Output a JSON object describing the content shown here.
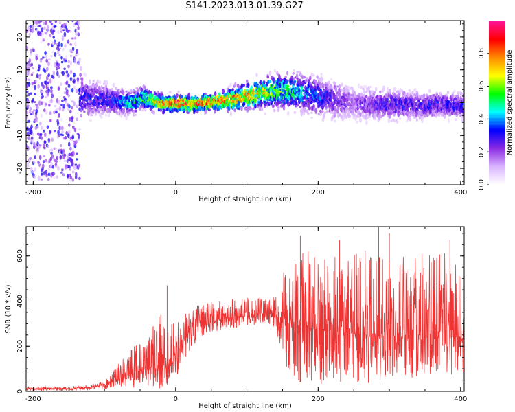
{
  "figure_title": "S141.2023.013.01.39.G27",
  "chart_data": [
    {
      "type": "heatmap",
      "title": "S141.2023.013.01.39.G27",
      "xlabel": "Height of straight line (km)",
      "ylabel": "Frequency (Hz)",
      "xlim": [
        -210,
        405
      ],
      "ylim": [
        -25,
        25
      ],
      "x_ticks": [
        -200,
        0,
        200,
        400
      ],
      "y_ticks": [
        -20,
        -10,
        0,
        10,
        20
      ],
      "colorbar": {
        "label": "Normalized spectral amplitude",
        "range": [
          0,
          1
        ],
        "ticks": [
          0.0,
          0.2,
          0.4,
          0.6,
          0.8
        ],
        "colors": [
          "#ffffff",
          "#d9b3ff",
          "#8a2be2",
          "#0000ff",
          "#00ffff",
          "#00ff00",
          "#ffff00",
          "#ff8c00",
          "#ff0000",
          "#ff1493"
        ]
      },
      "center_frequency_profile": {
        "x": [
          -130,
          -100,
          -80,
          -60,
          -45,
          -30,
          -10,
          0,
          20,
          40,
          60,
          80,
          100,
          120,
          140,
          160,
          180,
          200,
          230,
          260,
          300,
          340,
          370,
          400
        ],
        "y": [
          1.5,
          1.0,
          0.5,
          0.0,
          1.5,
          0.5,
          -0.5,
          0.0,
          -0.5,
          0.0,
          0.5,
          1.0,
          2.0,
          3.0,
          3.5,
          3.5,
          3.0,
          2.0,
          0.5,
          -0.5,
          -0.5,
          -1.0,
          -0.5,
          -1.0
        ]
      },
      "spread_hz": {
        "x": [
          -210,
          -140,
          -130,
          -100,
          -50,
          0,
          50,
          100,
          150,
          200,
          250,
          300,
          350,
          405
        ],
        "y": [
          25,
          25,
          8,
          6,
          4,
          3,
          3,
          5,
          7,
          8,
          7,
          6,
          5,
          5
        ]
      },
      "peak_amplitude": {
        "x": [
          -130,
          -80,
          -40,
          0,
          50,
          100,
          150,
          200,
          250,
          300,
          350,
          400
        ],
        "y": [
          0.3,
          0.35,
          0.6,
          0.85,
          0.8,
          0.75,
          0.55,
          0.35,
          0.2,
          0.3,
          0.3,
          0.3
        ]
      },
      "grid": false
    },
    {
      "type": "line",
      "xlabel": "Height of straight line (km)",
      "ylabel": "SNR (10 * v/v)",
      "xlim": [
        -210,
        405
      ],
      "ylim": [
        0,
        730
      ],
      "x_ticks": [
        -200,
        0,
        200,
        400
      ],
      "y_ticks": [
        0,
        200,
        400,
        600
      ],
      "color": "#ee3333",
      "baseline": {
        "x": [
          -210,
          -150,
          -120,
          -100,
          -80,
          -60,
          -40,
          -20,
          0,
          20,
          40,
          60,
          80,
          100,
          120,
          140,
          160,
          200,
          240,
          280,
          320,
          360,
          400
        ],
        "y": [
          12,
          12,
          18,
          30,
          55,
          85,
          110,
          100,
          150,
          270,
          310,
          320,
          330,
          335,
          335,
          330,
          300,
          280,
          260,
          250,
          240,
          240,
          240
        ]
      },
      "envelope_high": {
        "x": [
          -210,
          -150,
          -120,
          -100,
          -80,
          -60,
          -40,
          -20,
          0,
          20,
          40,
          60,
          80,
          100,
          120,
          140,
          160,
          200,
          240,
          280,
          320,
          360,
          400
        ],
        "y": [
          22,
          22,
          30,
          50,
          130,
          200,
          260,
          360,
          330,
          370,
          390,
          400,
          410,
          415,
          420,
          420,
          620,
          620,
          600,
          650,
          620,
          620,
          620
        ]
      },
      "envelope_low": {
        "x": [
          -210,
          -150,
          -120,
          -100,
          -80,
          -60,
          -40,
          -20,
          0,
          20,
          40,
          60,
          80,
          100,
          120,
          140,
          160,
          200,
          240,
          280,
          320,
          360,
          400
        ],
        "y": [
          2,
          2,
          5,
          8,
          10,
          15,
          25,
          10,
          60,
          180,
          250,
          270,
          280,
          290,
          290,
          280,
          40,
          30,
          30,
          30,
          40,
          40,
          40
        ]
      },
      "peaks": [
        {
          "x": -12,
          "y": 470
        },
        {
          "x": 175,
          "y": 690
        },
        {
          "x": 230,
          "y": 670
        },
        {
          "x": 285,
          "y": 730
        },
        {
          "x": 300,
          "y": 700
        },
        {
          "x": 385,
          "y": 670
        }
      ],
      "grid": false
    }
  ]
}
